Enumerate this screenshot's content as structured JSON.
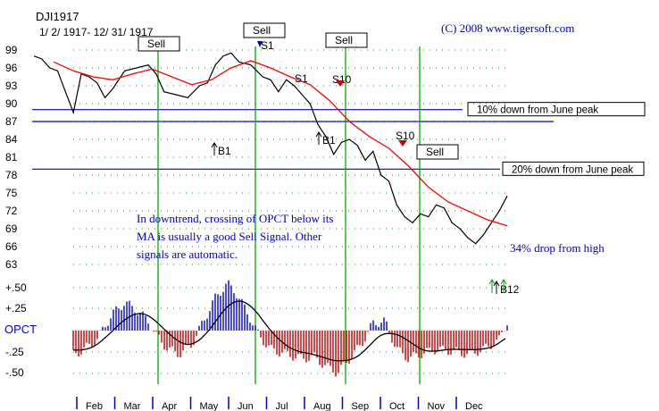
{
  "chart_data": [
    {
      "type": "line",
      "title": "DJI1917",
      "subtitle": "1/ 2/ 1917- 12/ 31/ 1917",
      "copyright": "(C) 2008 www.tigersoft.com",
      "yticks": [
        99,
        96,
        93,
        90,
        87,
        84,
        81,
        78,
        75,
        72,
        69,
        66,
        63
      ],
      "ylim": [
        62,
        101
      ],
      "x_months": [
        "Feb",
        "Mar",
        "Apr",
        "May",
        "Jun",
        "Jul",
        "Aug",
        "Sep",
        "Oct",
        "Nov",
        "Dec"
      ],
      "series": [
        {
          "color": "#000000",
          "x": [
            0,
            0.2,
            0.4,
            0.6,
            0.8,
            1.0,
            1.2,
            1.4,
            1.6,
            1.8,
            2.0,
            2.3,
            2.6,
            2.9,
            3.1,
            3.3,
            3.6,
            3.9,
            4.2,
            4.4,
            4.6,
            4.8,
            5.0,
            5.2,
            5.5,
            5.8,
            6.0,
            6.2,
            6.4,
            6.6,
            6.8,
            7.0,
            7.2,
            7.4,
            7.6,
            7.8,
            8.0,
            8.2,
            8.4,
            8.6,
            8.8,
            9.0,
            9.2,
            9.4,
            9.6,
            9.8,
            10.0,
            10.2,
            10.4,
            10.6,
            10.8,
            11.0,
            11.2,
            11.4,
            11.6,
            11.8,
            12.0
          ],
          "values": [
            98.0,
            97.5,
            96.0,
            95.5,
            92.0,
            88.5,
            95.0,
            94.5,
            93.5,
            91.0,
            92.5,
            95.5,
            96.0,
            96.5,
            95.0,
            92.0,
            91.5,
            91.0,
            93.0,
            93.5,
            96.5,
            98.0,
            98.5,
            97.0,
            96.5,
            94.5,
            94.0,
            92.0,
            94.0,
            93.0,
            91.5,
            90.0,
            86.5,
            84.5,
            81.5,
            83.5,
            84.0,
            83.0,
            80.5,
            82.0,
            78.0,
            77.0,
            73.0,
            71.0,
            70.0,
            71.5,
            71.0,
            73.0,
            72.5,
            70.0,
            69.0,
            67.5,
            66.5,
            68.0,
            70.0,
            72.0,
            74.5
          ]
        },
        {
          "color": "#ff0000",
          "x": [
            0.5,
            1.0,
            1.5,
            2.0,
            2.5,
            3.0,
            3.5,
            4.0,
            4.5,
            5.0,
            5.5,
            6.0,
            6.5,
            7.0,
            7.5,
            8.0,
            8.5,
            9.0,
            9.5,
            10.0,
            10.5,
            11.0,
            11.5,
            12.0
          ],
          "values": [
            97.0,
            95.5,
            94.5,
            94.0,
            95.0,
            95.8,
            94.5,
            93.2,
            94.0,
            96.0,
            97.2,
            96.0,
            94.5,
            93.2,
            90.5,
            87.0,
            84.5,
            82.5,
            79.5,
            76.0,
            73.5,
            72.0,
            70.5,
            69.5
          ]
        }
      ],
      "hlines": [
        {
          "value": 89.0,
          "color": "#0000cc",
          "label": "10% down from June peak"
        },
        {
          "value": 87.0,
          "color": "#0000cc",
          "label": ""
        },
        {
          "value": 79.0,
          "color": "#0000cc",
          "label": "20% down from June peak"
        }
      ],
      "annotations": [
        "In downtrend, crossing of OPCT below its",
        "MA is usually a good Sell Signal.  Other",
        "signals are automatic.",
        "34% drop from high"
      ],
      "signals": [
        {
          "label": "Sell",
          "boxed": true
        },
        {
          "label": "Sell",
          "boxed": true
        },
        {
          "label": "Sell",
          "boxed": true
        },
        {
          "label": "Sell",
          "boxed": true
        },
        {
          "label": "S1",
          "boxed": false
        },
        {
          "label": "S1",
          "boxed": false
        },
        {
          "label": "S10",
          "boxed": false
        },
        {
          "label": "S10",
          "boxed": false
        },
        {
          "label": "B1",
          "boxed": false
        },
        {
          "label": "B1",
          "boxed": false
        },
        {
          "label": "B12",
          "boxed": false
        }
      ]
    },
    {
      "type": "bar",
      "title": "OPCT",
      "yticks": [
        "+.50",
        "+.25",
        "-.25",
        "-.50"
      ],
      "ylim": [
        -0.6,
        0.6
      ],
      "positive_color": "#0000cc",
      "negative_color": "#bb0000",
      "ma_color": "#000000"
    }
  ]
}
